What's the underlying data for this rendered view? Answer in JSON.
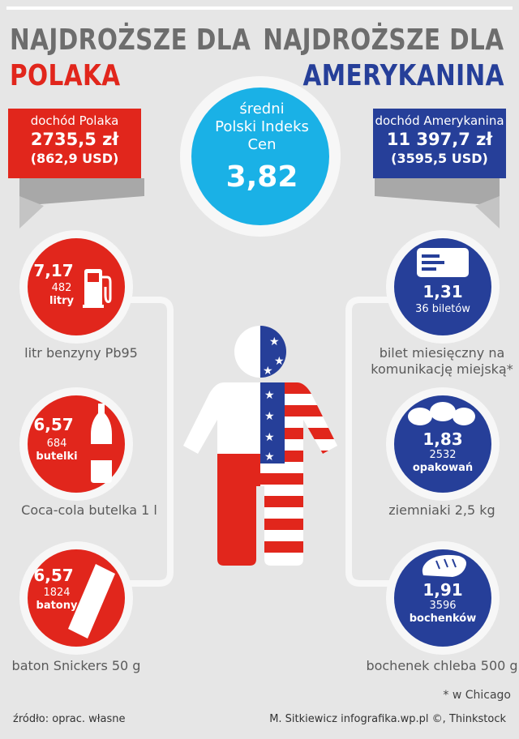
{
  "header": {
    "left_top": "NAJDROŻSZE DLA",
    "left_bottom": "POLAKA",
    "right_top": "NAJDROŻSZE DLA",
    "right_bottom": "AMERYKANINA"
  },
  "income_pl": {
    "label": "dochód Polaka",
    "amount": "2735,5 zł",
    "usd": "(862,9 USD)"
  },
  "income_us": {
    "label": "dochód Amerykanina",
    "amount": "11 397,7 zł",
    "usd": "(3595,5 USD)"
  },
  "index": {
    "label_1": "średni",
    "label_2": "Polski Indeks",
    "label_3": "Cen",
    "value": "3,82"
  },
  "pl_items": [
    {
      "value": "7,17",
      "count": "482",
      "unit": "litry",
      "caption": "litr benzyny Pb95",
      "icon": "fuel-pump-icon"
    },
    {
      "value": "6,57",
      "count": "684",
      "unit": "butelki",
      "caption": "Coca-cola butelka 1 l",
      "icon": "bottle-icon"
    },
    {
      "value": "6,57",
      "count": "1824",
      "unit": "batony",
      "caption": "baton Snickers 50 g",
      "icon": "candy-bar-icon"
    }
  ],
  "us_items": [
    {
      "value": "1,31",
      "count": "36 biletów",
      "caption_1": "bilet miesięczny na",
      "caption_2": "komunikację miejską*",
      "icon": "ticket-card-icon"
    },
    {
      "value": "1,83",
      "count": "2532",
      "unit": "opakowań",
      "caption": "ziemniaki 2,5 kg",
      "icon": "potatoes-icon"
    },
    {
      "value": "1,91",
      "count": "3596",
      "unit": "bochenków",
      "caption": "bochenek chleba 500 g",
      "icon": "bread-icon"
    }
  ],
  "footnote": "* w Chicago",
  "source": "źródło: oprac. własne",
  "credits": "M. Sitkiewicz infografika.wp.pl ©, Thinkstock",
  "colors": {
    "red": "#e1261c",
    "blue": "#263f99",
    "cyan": "#1ab1e6",
    "gray": "#6d6d6d",
    "bg": "#e6e6e6"
  }
}
